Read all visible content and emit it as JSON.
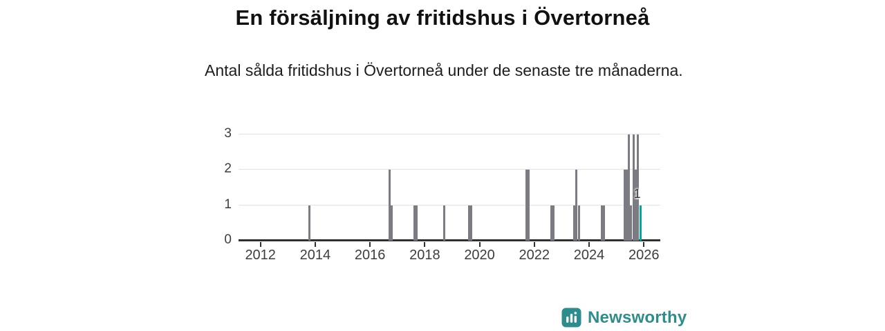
{
  "header": {
    "title": "En försäljning av fritidshus i Övertorneå",
    "subtitle": "Antal sålda fritidshus i Övertorneå under de senaste tre månaderna."
  },
  "footer": {
    "brand": "Newsworthy",
    "brand_icon": "bar-chart-logo-icon"
  },
  "colors": {
    "bar": "#7b7b83",
    "highlight": "#00a79c",
    "gridline": "#e2e2e2",
    "axis": "#2f2f2f",
    "tick_text": "#3d3d3d",
    "title_text": "#111111",
    "annotation_text": "#333333",
    "brand": "#2f8c8c"
  },
  "chart_data": {
    "type": "bar",
    "title": "En försäljning av fritidshus i Övertorneå",
    "subtitle": "Antal sålda fritidshus i Övertorneå under de senaste tre månaderna.",
    "xlabel": "",
    "ylabel": "",
    "grid": true,
    "xlim": [
      2011.2,
      2026.6
    ],
    "ylim": [
      0,
      3
    ],
    "x_ticks": [
      "2012",
      "2014",
      "2016",
      "2018",
      "2020",
      "2022",
      "2024",
      "2026"
    ],
    "y_ticks": [
      "0",
      "1",
      "2",
      "3"
    ],
    "points": [
      {
        "date": "2013-10",
        "value": 1
      },
      {
        "date": "2016-09",
        "value": 2
      },
      {
        "date": "2016-10",
        "value": 1
      },
      {
        "date": "2017-08",
        "value": 1
      },
      {
        "date": "2017-09",
        "value": 1
      },
      {
        "date": "2018-09",
        "value": 1
      },
      {
        "date": "2019-08",
        "value": 1
      },
      {
        "date": "2019-09",
        "value": 1
      },
      {
        "date": "2021-09",
        "value": 2
      },
      {
        "date": "2021-10",
        "value": 2
      },
      {
        "date": "2022-08",
        "value": 1
      },
      {
        "date": "2022-09",
        "value": 1
      },
      {
        "date": "2023-06",
        "value": 1
      },
      {
        "date": "2023-07",
        "value": 2
      },
      {
        "date": "2023-08",
        "value": 1
      },
      {
        "date": "2024-06",
        "value": 1
      },
      {
        "date": "2024-07",
        "value": 1
      },
      {
        "date": "2025-04",
        "value": 2
      },
      {
        "date": "2025-05",
        "value": 2
      },
      {
        "date": "2025-06",
        "value": 3
      },
      {
        "date": "2025-07",
        "value": 1
      },
      {
        "date": "2025-08",
        "value": 3
      },
      {
        "date": "2025-09",
        "value": 2
      },
      {
        "date": "2025-10",
        "value": 3
      }
    ],
    "highlight": {
      "date": "2025-11",
      "value": 1,
      "label": "1"
    }
  }
}
